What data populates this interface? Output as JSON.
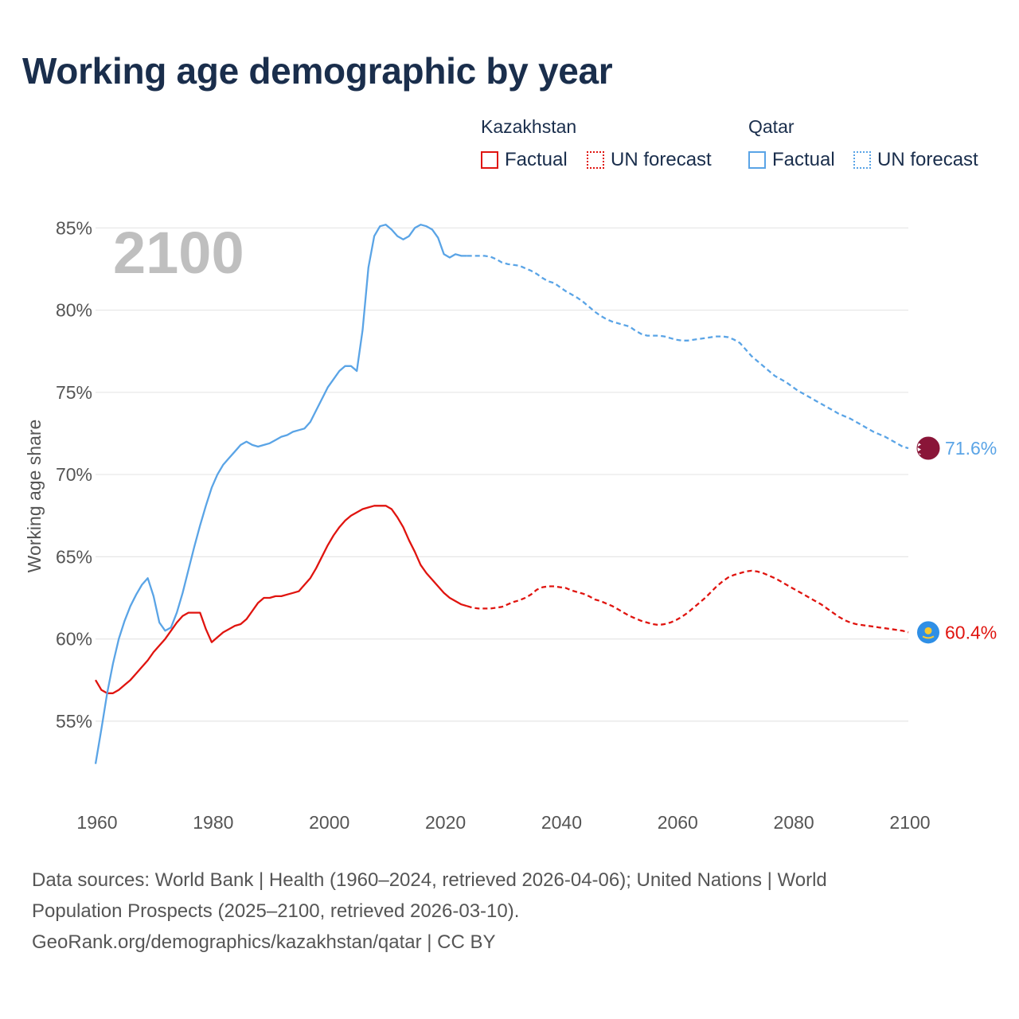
{
  "title": "Working age demographic by year",
  "legend": {
    "groups": [
      {
        "country": "Kazakhstan",
        "factual_label": "Factual",
        "forecast_label": "UN forecast",
        "color": "#e0140f"
      },
      {
        "country": "Qatar",
        "factual_label": "Factual",
        "forecast_label": "UN forecast",
        "color": "#5aa4e6"
      }
    ]
  },
  "year_label": "2100",
  "sources": {
    "line1": "Data sources: World Bank | Health (1960–2024, retrieved 2026-04-06); United Nations | World",
    "line2": "Population Prospects (2025–2100, retrieved 2026-03-10).",
    "line3": "GeoRank.org/demographics/kazakhstan/qatar | CC BY"
  },
  "chart_data": {
    "type": "line",
    "title": "Working age demographic by year",
    "xlabel": "",
    "ylabel": "Working age share",
    "xlim": [
      1960,
      2100
    ],
    "ylim": [
      50.2,
      87
    ],
    "x_ticks": [
      1960,
      1980,
      2000,
      2020,
      2040,
      2060,
      2080,
      2100
    ],
    "y_ticks": [
      55,
      60,
      65,
      70,
      75,
      80,
      85
    ],
    "y_tick_labels": [
      "55%",
      "60%",
      "65%",
      "70%",
      "75%",
      "80%",
      "85%"
    ],
    "grid": "horizontal",
    "factual_end_year": 2024,
    "series": [
      {
        "name": "Kazakhstan",
        "color": "#e0140f",
        "end_label": "60.4%",
        "points": [
          [
            1960,
            57.5
          ],
          [
            1961,
            56.9
          ],
          [
            1962,
            56.7
          ],
          [
            1963,
            56.7
          ],
          [
            1964,
            56.9
          ],
          [
            1965,
            57.2
          ],
          [
            1966,
            57.5
          ],
          [
            1967,
            57.9
          ],
          [
            1968,
            58.3
          ],
          [
            1969,
            58.7
          ],
          [
            1970,
            59.2
          ],
          [
            1971,
            59.6
          ],
          [
            1972,
            60.0
          ],
          [
            1973,
            60.5
          ],
          [
            1974,
            61.0
          ],
          [
            1975,
            61.4
          ],
          [
            1976,
            61.6
          ],
          [
            1977,
            61.6
          ],
          [
            1978,
            61.6
          ],
          [
            1979,
            60.6
          ],
          [
            1980,
            59.8
          ],
          [
            1981,
            60.1
          ],
          [
            1982,
            60.4
          ],
          [
            1983,
            60.6
          ],
          [
            1984,
            60.8
          ],
          [
            1985,
            60.9
          ],
          [
            1986,
            61.2
          ],
          [
            1987,
            61.7
          ],
          [
            1988,
            62.2
          ],
          [
            1989,
            62.5
          ],
          [
            1990,
            62.5
          ],
          [
            1991,
            62.6
          ],
          [
            1992,
            62.6
          ],
          [
            1993,
            62.7
          ],
          [
            1994,
            62.8
          ],
          [
            1995,
            62.9
          ],
          [
            1996,
            63.3
          ],
          [
            1997,
            63.7
          ],
          [
            1998,
            64.3
          ],
          [
            1999,
            65.0
          ],
          [
            2000,
            65.7
          ],
          [
            2001,
            66.3
          ],
          [
            2002,
            66.8
          ],
          [
            2003,
            67.2
          ],
          [
            2004,
            67.5
          ],
          [
            2005,
            67.7
          ],
          [
            2006,
            67.9
          ],
          [
            2007,
            68.0
          ],
          [
            2008,
            68.1
          ],
          [
            2009,
            68.1
          ],
          [
            2010,
            68.1
          ],
          [
            2011,
            67.9
          ],
          [
            2012,
            67.4
          ],
          [
            2013,
            66.8
          ],
          [
            2014,
            66.0
          ],
          [
            2015,
            65.3
          ],
          [
            2016,
            64.5
          ],
          [
            2017,
            64.0
          ],
          [
            2018,
            63.6
          ],
          [
            2019,
            63.2
          ],
          [
            2020,
            62.8
          ],
          [
            2021,
            62.5
          ],
          [
            2022,
            62.3
          ],
          [
            2023,
            62.1
          ],
          [
            2024,
            62.0
          ],
          [
            2025,
            61.9
          ],
          [
            2026,
            61.85
          ],
          [
            2027,
            61.85
          ],
          [
            2028,
            61.85
          ],
          [
            2029,
            61.9
          ],
          [
            2030,
            61.95
          ],
          [
            2031,
            62.1
          ],
          [
            2032,
            62.25
          ],
          [
            2033,
            62.35
          ],
          [
            2034,
            62.5
          ],
          [
            2035,
            62.7
          ],
          [
            2036,
            63.0
          ],
          [
            2037,
            63.15
          ],
          [
            2038,
            63.2
          ],
          [
            2039,
            63.2
          ],
          [
            2040,
            63.15
          ],
          [
            2041,
            63.1
          ],
          [
            2042,
            62.95
          ],
          [
            2043,
            62.85
          ],
          [
            2044,
            62.75
          ],
          [
            2045,
            62.6
          ],
          [
            2046,
            62.4
          ],
          [
            2047,
            62.3
          ],
          [
            2048,
            62.15
          ],
          [
            2049,
            62.0
          ],
          [
            2050,
            61.8
          ],
          [
            2051,
            61.6
          ],
          [
            2052,
            61.4
          ],
          [
            2053,
            61.25
          ],
          [
            2054,
            61.1
          ],
          [
            2055,
            61.0
          ],
          [
            2056,
            60.9
          ],
          [
            2057,
            60.85
          ],
          [
            2058,
            60.9
          ],
          [
            2059,
            61.0
          ],
          [
            2060,
            61.15
          ],
          [
            2061,
            61.35
          ],
          [
            2062,
            61.6
          ],
          [
            2063,
            61.9
          ],
          [
            2064,
            62.2
          ],
          [
            2065,
            62.5
          ],
          [
            2066,
            62.85
          ],
          [
            2067,
            63.2
          ],
          [
            2068,
            63.5
          ],
          [
            2069,
            63.75
          ],
          [
            2070,
            63.9
          ],
          [
            2071,
            64.0
          ],
          [
            2072,
            64.1
          ],
          [
            2073,
            64.15
          ],
          [
            2074,
            64.1
          ],
          [
            2075,
            64.0
          ],
          [
            2076,
            63.85
          ],
          [
            2077,
            63.7
          ],
          [
            2078,
            63.5
          ],
          [
            2079,
            63.3
          ],
          [
            2080,
            63.1
          ],
          [
            2081,
            62.9
          ],
          [
            2082,
            62.7
          ],
          [
            2083,
            62.5
          ],
          [
            2084,
            62.3
          ],
          [
            2085,
            62.1
          ],
          [
            2086,
            61.85
          ],
          [
            2087,
            61.6
          ],
          [
            2088,
            61.35
          ],
          [
            2089,
            61.15
          ],
          [
            2090,
            61.0
          ],
          [
            2091,
            60.9
          ],
          [
            2092,
            60.85
          ],
          [
            2093,
            60.8
          ],
          [
            2094,
            60.75
          ],
          [
            2095,
            60.7
          ],
          [
            2096,
            60.65
          ],
          [
            2097,
            60.6
          ],
          [
            2098,
            60.55
          ],
          [
            2099,
            60.5
          ],
          [
            2100,
            60.4
          ]
        ]
      },
      {
        "name": "Qatar",
        "color": "#5aa4e6",
        "end_label": "71.6%",
        "points": [
          [
            1960,
            52.4
          ],
          [
            1961,
            54.5
          ],
          [
            1962,
            56.7
          ],
          [
            1963,
            58.5
          ],
          [
            1964,
            60.0
          ],
          [
            1965,
            61.1
          ],
          [
            1966,
            62.0
          ],
          [
            1967,
            62.7
          ],
          [
            1968,
            63.3
          ],
          [
            1969,
            63.7
          ],
          [
            1970,
            62.6
          ],
          [
            1971,
            61.0
          ],
          [
            1972,
            60.5
          ],
          [
            1973,
            60.7
          ],
          [
            1974,
            61.6
          ],
          [
            1975,
            62.8
          ],
          [
            1976,
            64.2
          ],
          [
            1977,
            65.6
          ],
          [
            1978,
            66.9
          ],
          [
            1979,
            68.1
          ],
          [
            1980,
            69.2
          ],
          [
            1981,
            70.0
          ],
          [
            1982,
            70.6
          ],
          [
            1983,
            71.0
          ],
          [
            1984,
            71.4
          ],
          [
            1985,
            71.8
          ],
          [
            1986,
            72.0
          ],
          [
            1987,
            71.8
          ],
          [
            1988,
            71.7
          ],
          [
            1989,
            71.8
          ],
          [
            1990,
            71.9
          ],
          [
            1991,
            72.1
          ],
          [
            1992,
            72.3
          ],
          [
            1993,
            72.4
          ],
          [
            1994,
            72.6
          ],
          [
            1995,
            72.7
          ],
          [
            1996,
            72.8
          ],
          [
            1997,
            73.2
          ],
          [
            1998,
            73.9
          ],
          [
            1999,
            74.6
          ],
          [
            2000,
            75.3
          ],
          [
            2001,
            75.8
          ],
          [
            2002,
            76.3
          ],
          [
            2003,
            76.6
          ],
          [
            2004,
            76.6
          ],
          [
            2005,
            76.3
          ],
          [
            2006,
            78.8
          ],
          [
            2007,
            82.6
          ],
          [
            2008,
            84.5
          ],
          [
            2009,
            85.1
          ],
          [
            2010,
            85.2
          ],
          [
            2011,
            84.9
          ],
          [
            2012,
            84.5
          ],
          [
            2013,
            84.3
          ],
          [
            2014,
            84.5
          ],
          [
            2015,
            85.0
          ],
          [
            2016,
            85.2
          ],
          [
            2017,
            85.1
          ],
          [
            2018,
            84.9
          ],
          [
            2019,
            84.4
          ],
          [
            2020,
            83.4
          ],
          [
            2021,
            83.2
          ],
          [
            2022,
            83.4
          ],
          [
            2023,
            83.3
          ],
          [
            2024,
            83.3
          ],
          [
            2025,
            83.3
          ],
          [
            2026,
            83.3
          ],
          [
            2027,
            83.3
          ],
          [
            2028,
            83.25
          ],
          [
            2029,
            83.1
          ],
          [
            2030,
            82.9
          ],
          [
            2031,
            82.8
          ],
          [
            2032,
            82.75
          ],
          [
            2033,
            82.7
          ],
          [
            2034,
            82.55
          ],
          [
            2035,
            82.4
          ],
          [
            2036,
            82.2
          ],
          [
            2037,
            81.95
          ],
          [
            2038,
            81.75
          ],
          [
            2039,
            81.65
          ],
          [
            2040,
            81.4
          ],
          [
            2041,
            81.15
          ],
          [
            2042,
            80.95
          ],
          [
            2043,
            80.75
          ],
          [
            2044,
            80.5
          ],
          [
            2045,
            80.2
          ],
          [
            2046,
            79.9
          ],
          [
            2047,
            79.65
          ],
          [
            2048,
            79.45
          ],
          [
            2049,
            79.3
          ],
          [
            2050,
            79.2
          ],
          [
            2051,
            79.1
          ],
          [
            2052,
            79.0
          ],
          [
            2053,
            78.75
          ],
          [
            2054,
            78.55
          ],
          [
            2055,
            78.45
          ],
          [
            2056,
            78.45
          ],
          [
            2057,
            78.45
          ],
          [
            2058,
            78.4
          ],
          [
            2059,
            78.3
          ],
          [
            2060,
            78.2
          ],
          [
            2061,
            78.15
          ],
          [
            2062,
            78.15
          ],
          [
            2063,
            78.2
          ],
          [
            2064,
            78.25
          ],
          [
            2065,
            78.3
          ],
          [
            2066,
            78.35
          ],
          [
            2067,
            78.4
          ],
          [
            2068,
            78.4
          ],
          [
            2069,
            78.35
          ],
          [
            2070,
            78.2
          ],
          [
            2071,
            78.0
          ],
          [
            2072,
            77.6
          ],
          [
            2073,
            77.2
          ],
          [
            2074,
            76.9
          ],
          [
            2075,
            76.6
          ],
          [
            2076,
            76.3
          ],
          [
            2077,
            76.0
          ],
          [
            2078,
            75.8
          ],
          [
            2079,
            75.6
          ],
          [
            2080,
            75.35
          ],
          [
            2081,
            75.1
          ],
          [
            2082,
            74.9
          ],
          [
            2083,
            74.7
          ],
          [
            2084,
            74.5
          ],
          [
            2085,
            74.3
          ],
          [
            2086,
            74.1
          ],
          [
            2087,
            73.9
          ],
          [
            2088,
            73.7
          ],
          [
            2089,
            73.55
          ],
          [
            2090,
            73.4
          ],
          [
            2091,
            73.2
          ],
          [
            2092,
            73.0
          ],
          [
            2093,
            72.8
          ],
          [
            2094,
            72.6
          ],
          [
            2095,
            72.45
          ],
          [
            2096,
            72.3
          ],
          [
            2097,
            72.1
          ],
          [
            2098,
            71.9
          ],
          [
            2099,
            71.7
          ],
          [
            2100,
            71.6
          ]
        ]
      }
    ]
  }
}
